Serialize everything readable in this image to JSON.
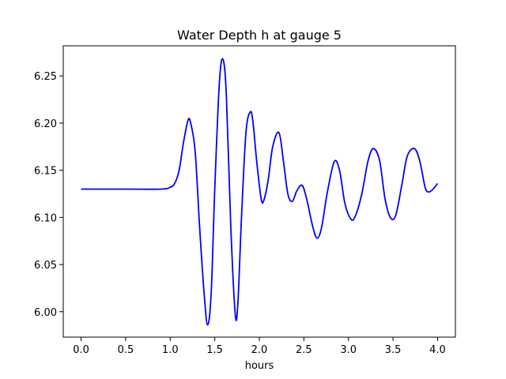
{
  "chart_data": {
    "type": "line",
    "title": "Water Depth h at gauge 5",
    "xlabel": "hours",
    "ylabel": "",
    "xlim": [
      -0.2,
      4.2
    ],
    "ylim": [
      5.973,
      6.282
    ],
    "xticks": [
      0.0,
      0.5,
      1.0,
      1.5,
      2.0,
      2.5,
      3.0,
      3.5,
      4.0
    ],
    "xtick_labels": [
      "0.0",
      "0.5",
      "1.0",
      "1.5",
      "2.0",
      "2.5",
      "3.0",
      "3.5",
      "4.0"
    ],
    "yticks": [
      6.0,
      6.05,
      6.1,
      6.15,
      6.2,
      6.25
    ],
    "ytick_labels": [
      "6.00",
      "6.05",
      "6.10",
      "6.15",
      "6.20",
      "6.25"
    ],
    "grid": false,
    "series": [
      {
        "color": "#0000ff",
        "x": [
          0.0,
          0.5,
          0.9,
          1.0,
          1.05,
          1.1,
          1.15,
          1.2,
          1.23,
          1.28,
          1.33,
          1.38,
          1.42,
          1.46,
          1.5,
          1.55,
          1.59,
          1.63,
          1.68,
          1.73,
          1.76,
          1.8,
          1.85,
          1.9,
          1.93,
          1.97,
          2.02,
          2.05,
          2.1,
          2.15,
          2.22,
          2.27,
          2.32,
          2.37,
          2.42,
          2.48,
          2.53,
          2.6,
          2.65,
          2.7,
          2.76,
          2.84,
          2.9,
          2.96,
          3.03,
          3.08,
          3.15,
          3.22,
          3.28,
          3.35,
          3.41,
          3.47,
          3.53,
          3.6,
          3.66,
          3.74,
          3.8,
          3.86,
          3.9,
          3.95,
          4.0
        ],
        "y": [
          6.13,
          6.13,
          6.13,
          6.132,
          6.136,
          6.15,
          6.18,
          6.203,
          6.2,
          6.17,
          6.09,
          6.02,
          5.986,
          6.02,
          6.13,
          6.24,
          6.268,
          6.23,
          6.09,
          5.997,
          6.01,
          6.1,
          6.19,
          6.212,
          6.2,
          6.16,
          6.12,
          6.118,
          6.14,
          6.175,
          6.19,
          6.16,
          6.125,
          6.117,
          6.128,
          6.134,
          6.12,
          6.09,
          6.078,
          6.09,
          6.125,
          6.159,
          6.15,
          6.115,
          6.098,
          6.102,
          6.125,
          6.16,
          6.173,
          6.16,
          6.12,
          6.1,
          6.102,
          6.135,
          6.165,
          6.173,
          6.16,
          6.132,
          6.127,
          6.13,
          6.136
        ]
      }
    ]
  }
}
